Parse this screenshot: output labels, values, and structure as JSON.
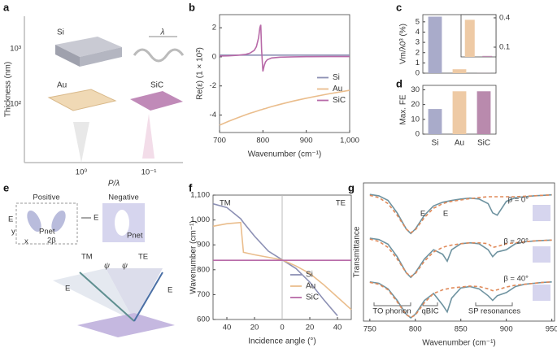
{
  "figure": {
    "panel_labels": [
      "a",
      "b",
      "c",
      "d",
      "e",
      "f",
      "g"
    ],
    "panel_a": {
      "ylabel": "Thickness (nm)",
      "yticks": [
        "10³",
        "10²"
      ],
      "xticks": [
        "10⁰",
        "10⁻¹"
      ],
      "xlabel": "P/λ",
      "materials": [
        "Si",
        "Au",
        "SiC"
      ],
      "period": "λ"
    },
    "panel_e": {
      "positive": "Positive",
      "negative": "Negative",
      "field": "E",
      "pnet": "Pnet",
      "angle": "2β",
      "axis_y": "y",
      "axis_x": "x",
      "tm": "TM",
      "te": "TE",
      "psi": "ψ"
    }
  },
  "chart_data": [
    {
      "type": "line",
      "xlabel": "Wavenumber (cm⁻¹)",
      "ylabel": "Re(ε) (1 × 10²)",
      "x": [
        700,
        720,
        740,
        760,
        770,
        780,
        785,
        790,
        793,
        795,
        797,
        800,
        803,
        806,
        810,
        820,
        840,
        870,
        900,
        950,
        1000
      ],
      "xlim": [
        700,
        1000
      ],
      "xticks": [
        700,
        800,
        900,
        {
          "value": 1000,
          "label": "1,000"
        }
      ],
      "ylim": [
        -5.2,
        2.9
      ],
      "yticks": [
        2,
        0,
        -2,
        -4
      ],
      "legend": "center right",
      "series": [
        {
          "name": "Si",
          "color": "#8c90b4",
          "values": [
            0.12,
            0.12,
            0.12,
            0.12,
            0.12,
            0.12,
            0.12,
            0.12,
            0.12,
            0.12,
            0.12,
            0.12,
            0.12,
            0.12,
            0.12,
            0.12,
            0.12,
            0.12,
            0.12,
            0.12,
            0.12
          ]
        },
        {
          "name": "Au",
          "color": "#eabd8c",
          "values": [
            -4.7,
            -4.44,
            -4.21,
            -3.99,
            -3.88,
            -3.79,
            -3.74,
            -3.69,
            -3.66,
            -3.64,
            -3.63,
            -3.6,
            -3.57,
            -3.55,
            -3.51,
            -3.42,
            -3.26,
            -3.04,
            -2.84,
            -2.55,
            -2.3
          ]
        },
        {
          "name": "SiC",
          "color": "#b86aa8",
          "values": [
            0.05,
            0.07,
            0.1,
            0.17,
            0.25,
            0.45,
            0.7,
            1.3,
            2.0,
            2.2,
            0.5,
            -1.0,
            -0.6,
            -0.35,
            -0.2,
            -0.08,
            -0.02,
            0,
            0.01,
            0.02,
            0.02
          ]
        }
      ]
    },
    {
      "type": "bar",
      "ylabel": "Vm/λ0³ (%)",
      "categories": [
        null,
        null,
        null
      ],
      "values": [
        5.5,
        0.38,
        0.01
      ],
      "colors": [
        "#a9abca",
        "#eecaa5",
        "#b98aad"
      ],
      "ylim": [
        0,
        5.7
      ],
      "yticks": [
        0,
        1,
        2,
        3,
        4,
        5
      ],
      "yaxis_side": "left"
    },
    {
      "type": "bar",
      "categories": [
        null,
        null
      ],
      "values": [
        0.38,
        0.01
      ],
      "colors": [
        "#eecaa5",
        "#b98aad"
      ],
      "ylim": [
        0,
        0.433
      ],
      "yticks": [
        0.1,
        0.4
      ],
      "yaxis_side": "right"
    },
    {
      "type": "bar",
      "ylabel": "Max. FE",
      "categories": [
        "Si",
        "Au",
        "SiC"
      ],
      "values": [
        17,
        29,
        29
      ],
      "colors": [
        "#a9abca",
        "#eecaa5",
        "#b98aad"
      ],
      "ylim": [
        0,
        33
      ],
      "yticks": [
        0,
        10,
        20,
        30
      ],
      "yaxis_side": "left"
    },
    {
      "type": "line",
      "xlabel": "Incidence angle (°)",
      "ylabel": "Wavenumber (cm⁻¹)",
      "x": [
        -50,
        -40,
        -30,
        -28,
        -20,
        -10,
        0,
        10,
        20,
        30,
        40,
        50
      ],
      "xlim": [
        -50,
        50
      ],
      "xticks": [
        {
          "value": -40,
          "label": "40"
        },
        {
          "value": -20,
          "label": "20"
        },
        0,
        20,
        40
      ],
      "ylim": [
        600,
        1100
      ],
      "yticks": [
        600,
        700,
        800,
        900,
        {
          "value": 1000,
          "label": "1,000"
        },
        {
          "value": 1100,
          "label": "1,100"
        }
      ],
      "legend": "lower right",
      "zero_line": true,
      "annotations": [
        "TM",
        "TE"
      ],
      "series": [
        {
          "name": "Si",
          "color": "#8c90b4",
          "values": [
            1065,
            1050,
            1005,
            990,
            935,
            875,
            840,
            805,
            750,
            680,
            615,
            null
          ]
        },
        {
          "name": "Au",
          "color": "#eabd8c",
          "values": [
            975,
            985,
            990,
            870,
            860,
            850,
            840,
            815,
            785,
            740,
            690,
            640
          ]
        },
        {
          "name": "SiC",
          "color": "#b86aa8",
          "values": [
            838,
            838,
            838,
            838,
            838,
            838,
            838,
            838,
            838,
            838,
            838,
            838
          ]
        }
      ]
    },
    {
      "type": "line",
      "xlabel": "Wavenumber (cm⁻¹)",
      "ylabel": "Transmittance",
      "x": [
        750,
        760,
        770,
        780,
        790,
        795,
        800,
        810,
        820,
        830,
        835,
        840,
        850,
        860,
        870,
        880,
        885,
        890,
        900,
        910,
        920,
        930,
        940,
        950
      ],
      "xlim": [
        743,
        953
      ],
      "xticks": [
        750,
        800,
        850,
        900,
        950
      ],
      "ylim": [
        0,
        3
      ],
      "annotations": [
        "TO phonon",
        "qBIC",
        "SP resonances",
        "β = 0°",
        "β = 20°",
        "β = 40°",
        "E",
        "E"
      ],
      "series": [
        {
          "color": "#6f93a0",
          "dash": false,
          "values": [
            2.75,
            2.72,
            2.62,
            2.35,
            2.0,
            1.9,
            2.0,
            2.3,
            2.5,
            2.58,
            2.6,
            2.62,
            2.65,
            2.67,
            2.65,
            2.55,
            2.35,
            2.3,
            2.6,
            2.68,
            2.7,
            2.72,
            2.73,
            2.74
          ]
        },
        {
          "color": "#e08a5a",
          "dash": true,
          "values": [
            2.73,
            2.68,
            2.55,
            2.3,
            2.0,
            1.92,
            1.98,
            2.25,
            2.45,
            2.55,
            2.58,
            2.6,
            2.63,
            2.66,
            2.68,
            2.7,
            2.7,
            2.7,
            2.7,
            2.7,
            2.71,
            2.72,
            2.73,
            2.74
          ]
        },
        {
          "color": "#6f93a0",
          "dash": false,
          "values": [
            1.8,
            1.77,
            1.67,
            1.4,
            1.05,
            0.95,
            1.05,
            1.35,
            1.55,
            1.45,
            1.3,
            1.55,
            1.68,
            1.7,
            1.68,
            1.55,
            1.4,
            1.5,
            1.55,
            1.68,
            1.72,
            1.74,
            1.75,
            1.76
          ]
        },
        {
          "color": "#e08a5a",
          "dash": true,
          "values": [
            1.78,
            1.73,
            1.6,
            1.35,
            1.05,
            0.97,
            1.03,
            1.3,
            1.5,
            1.6,
            1.63,
            1.65,
            1.68,
            1.7,
            1.7,
            1.68,
            1.6,
            1.62,
            1.68,
            1.7,
            1.72,
            1.74,
            1.75,
            1.76
          ]
        },
        {
          "color": "#6f93a0",
          "dash": false,
          "values": [
            0.85,
            0.82,
            0.7,
            0.45,
            0.15,
            0.07,
            0.15,
            0.45,
            0.6,
            0.35,
            0.2,
            0.5,
            0.72,
            0.75,
            0.7,
            0.55,
            0.45,
            0.55,
            0.62,
            0.75,
            0.8,
            0.82,
            0.84,
            0.85
          ]
        },
        {
          "color": "#e08a5a",
          "dash": true,
          "values": [
            0.84,
            0.8,
            0.68,
            0.42,
            0.14,
            0.08,
            0.13,
            0.4,
            0.6,
            0.68,
            0.7,
            0.72,
            0.74,
            0.76,
            0.75,
            0.7,
            0.66,
            0.68,
            0.74,
            0.78,
            0.8,
            0.82,
            0.84,
            0.85
          ]
        }
      ]
    }
  ]
}
